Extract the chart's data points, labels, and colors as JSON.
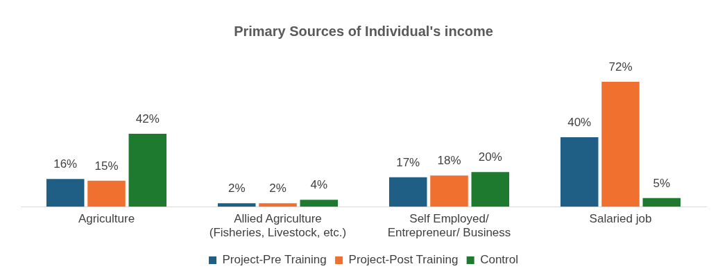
{
  "chart_data": {
    "type": "bar",
    "title": "Primary Sources of Individual's income",
    "categories": [
      "Agriculture",
      "Allied Agriculture\n(Fisheries, Livestock, etc.)",
      "Self Employed/\nEntrepreneur/ Business",
      "Salaried job"
    ],
    "series": [
      {
        "name": "Project-Pre Training",
        "color": "#1f5f86",
        "values": [
          16,
          2,
          17,
          40
        ],
        "value_labels": [
          "16%",
          "2%",
          "17%",
          "40%"
        ]
      },
      {
        "name": "Project-Post Training",
        "color": "#f07030",
        "values": [
          15,
          2,
          18,
          72
        ],
        "value_labels": [
          "15%",
          "2%",
          "18%",
          "72%"
        ]
      },
      {
        "name": "Control",
        "color": "#1e7a2e",
        "values": [
          42,
          4,
          20,
          5
        ],
        "value_labels": [
          "42%",
          "4%",
          "20%",
          "5%"
        ]
      }
    ],
    "grid": false,
    "legend": "bottom",
    "tick_labels": "x"
  }
}
